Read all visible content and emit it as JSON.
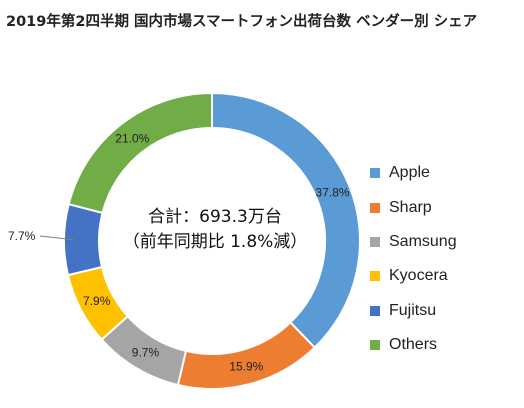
{
  "chart_data": {
    "type": "pie",
    "variant": "donut",
    "title": "2019年第2四半期 国内市場スマートフォン出荷台数 ベンダー別 シェア",
    "center_label": {
      "line1": "合計：693.3万台",
      "line2": "（前年同期比 1.8%減）"
    },
    "slices": [
      {
        "name": "Apple",
        "value": 37.8,
        "label": "37.8%",
        "color": "#5B9BD5"
      },
      {
        "name": "Sharp",
        "value": 15.9,
        "label": "15.9%",
        "color": "#ED7D31"
      },
      {
        "name": "Samsung",
        "value": 9.7,
        "label": "9.7%",
        "color": "#A5A5A5"
      },
      {
        "name": "Kyocera",
        "value": 7.9,
        "label": "7.9%",
        "color": "#FFC000"
      },
      {
        "name": "Fujitsu",
        "value": 7.7,
        "label": "7.7%",
        "color": "#4472C4"
      },
      {
        "name": "Others",
        "value": 21.0,
        "label": "21.0%",
        "color": "#70AD47"
      }
    ],
    "legend_position": "right"
  }
}
